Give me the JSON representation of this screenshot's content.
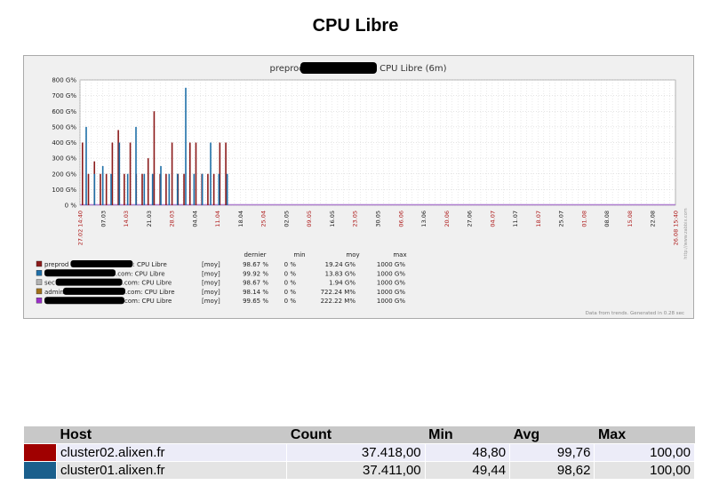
{
  "page_title": "CPU Libre",
  "chart_data": {
    "type": "bar",
    "title": "preprod",
    "title_suffix": ": CPU Libre",
    "title_period": "(6m)",
    "y_ticks": [
      "0 %",
      "100 G%",
      "200 G%",
      "300 G%",
      "400 G%",
      "500 G%",
      "600 G%",
      "700 G%",
      "800 G%"
    ],
    "ylim": [
      0,
      800
    ],
    "y_unit": "G%",
    "x_ticks": [
      {
        "label": "27.02 14:40",
        "red": true
      },
      {
        "label": "07.03",
        "red": false
      },
      {
        "label": "14.03",
        "red": true
      },
      {
        "label": "21.03",
        "red": false
      },
      {
        "label": "28.03",
        "red": true
      },
      {
        "label": "04.04",
        "red": false
      },
      {
        "label": "11.04",
        "red": true
      },
      {
        "label": "18.04",
        "red": false
      },
      {
        "label": "25.04",
        "red": true
      },
      {
        "label": "02.05",
        "red": false
      },
      {
        "label": "09.05",
        "red": true
      },
      {
        "label": "16.05",
        "red": false
      },
      {
        "label": "23.05",
        "red": true
      },
      {
        "label": "30.05",
        "red": false
      },
      {
        "label": "06.06",
        "red": true
      },
      {
        "label": "13.06",
        "red": false
      },
      {
        "label": "20.06",
        "red": true
      },
      {
        "label": "27.06",
        "red": false
      },
      {
        "label": "04.07",
        "red": true
      },
      {
        "label": "11.07",
        "red": false
      },
      {
        "label": "18.07",
        "red": true
      },
      {
        "label": "25.07",
        "red": false
      },
      {
        "label": "01.08",
        "red": true
      },
      {
        "label": "08.08",
        "red": false
      },
      {
        "label": "15.08",
        "red": true
      },
      {
        "label": "22.08",
        "red": false
      },
      {
        "label": "26.08 15:40",
        "red": true
      }
    ],
    "series": [
      {
        "name": "preprod",
        "suffix": ": CPU Libre",
        "color": "#8b1a1a",
        "values": [
          400,
          200,
          280,
          200,
          200,
          400,
          480,
          200,
          400,
          200,
          200,
          300,
          600,
          200,
          200,
          400,
          200,
          200,
          400,
          400,
          200,
          200,
          200,
          400,
          400
        ]
      },
      {
        "name": "",
        "suffix": ".com: CPU Libre",
        "color": "#1f6fa8",
        "values": [
          500,
          200,
          250,
          200,
          400,
          200,
          500,
          200,
          200,
          250,
          200,
          200,
          750,
          200,
          200,
          400,
          200,
          200
        ]
      },
      {
        "name": "sec",
        "suffix": ".com: CPU Libre",
        "color": "#b4b4b4",
        "values": []
      },
      {
        "name": "admin",
        "suffix": ".com: CPU Libre",
        "color": "#a0701a",
        "values": []
      },
      {
        "name": "",
        "suffix": "com: CPU Libre",
        "color": "#9b30c8",
        "values": []
      }
    ],
    "legend": {
      "headers": [
        "dernier",
        "min",
        "moy",
        "max"
      ],
      "rows": [
        {
          "agg": "[moy]",
          "dernier": "98.67 %",
          "min": "0 %",
          "moy": "19.24 G%",
          "max": "1000 G%"
        },
        {
          "agg": "[moy]",
          "dernier": "99.92 %",
          "min": "0 %",
          "moy": "13.83 G%",
          "max": "1000 G%"
        },
        {
          "agg": "[moy]",
          "dernier": "98.67 %",
          "min": "0 %",
          "moy": "1.94 G%",
          "max": "1000 G%"
        },
        {
          "agg": "[moy]",
          "dernier": "98.14 %",
          "min": "0 %",
          "moy": "722.24 M%",
          "max": "1000 G%"
        },
        {
          "agg": "[moy]",
          "dernier": "99.65 %",
          "min": "0 %",
          "moy": "222.22 M%",
          "max": "1000 G%"
        }
      ]
    },
    "footnote": "Data from trends. Generated in 0.28 sec",
    "watermark": "http://www.zabbix.com"
  },
  "summary": {
    "headers": [
      "Host",
      "Count",
      "Min",
      "Avg",
      "Max"
    ],
    "rows": [
      {
        "color": "#a00000",
        "host": "cluster02.alixen.fr",
        "count": "37.418,00",
        "min": "48,80",
        "avg": "99,76",
        "max": "100,00"
      },
      {
        "color": "#1a5f8c",
        "host": "cluster01.alixen.fr",
        "count": "37.411,00",
        "min": "49,44",
        "avg": "98,62",
        "max": "100,00"
      }
    ]
  }
}
